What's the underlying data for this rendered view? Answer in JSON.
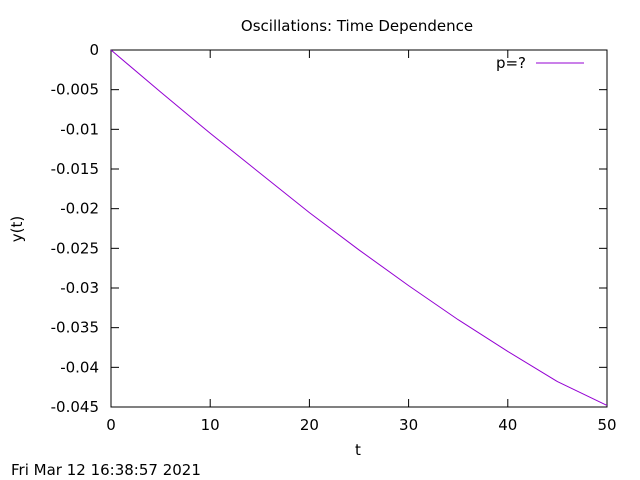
{
  "chart_data": {
    "type": "line",
    "title": "Oscillations: Time Dependence",
    "xlabel": "t",
    "ylabel": "y(t)",
    "xlim": [
      0,
      50
    ],
    "ylim": [
      -0.045,
      0
    ],
    "x_ticks": [
      "0",
      "10",
      "20",
      "30",
      "40",
      "50"
    ],
    "y_ticks": [
      "0",
      "-0.005",
      "-0.01",
      "-0.015",
      "-0.02",
      "-0.025",
      "-0.03",
      "-0.035",
      "-0.04",
      "-0.045"
    ],
    "grid": false,
    "legend_position": "top-right",
    "series": [
      {
        "name": "p=?",
        "color": "#9400d3",
        "x": [
          0,
          5,
          10,
          15,
          20,
          25,
          30,
          35,
          40,
          45,
          50
        ],
        "y": [
          0,
          -0.0053,
          -0.0105,
          -0.0155,
          -0.0205,
          -0.0252,
          -0.0297,
          -0.034,
          -0.038,
          -0.0418,
          -0.0448
        ]
      }
    ]
  },
  "footer": {
    "timestamp": "Fri Mar 12 16:38:57 2021"
  }
}
